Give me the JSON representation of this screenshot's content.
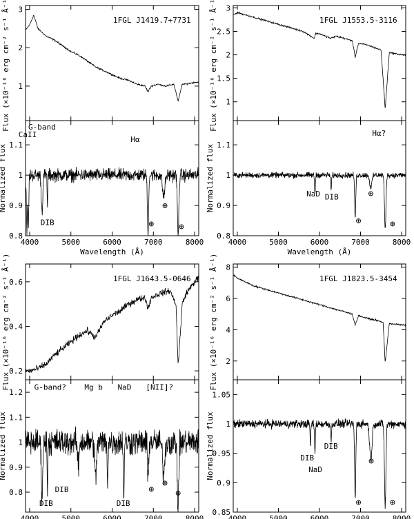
{
  "figure": {
    "flux_ylabel": "Flux (×10⁻¹⁶ erg cm⁻² s⁻¹ Å⁻¹)",
    "norm_ylabel": "Normalized flux",
    "xlabel": "Wavelength (Å)",
    "earth_symbol": "⊕"
  },
  "chart_data": [
    {
      "type": "line",
      "name": "1FGL J1419.7+7731",
      "x_range": [
        3900,
        8100
      ],
      "x_ticks": [
        "4000",
        "5000",
        "6000",
        "7000",
        "8000"
      ],
      "flux": {
        "ylim": [
          0.1,
          3.1
        ],
        "y_ticks": [
          "1",
          "2",
          "3"
        ],
        "y_tick_values": [
          1,
          2,
          3
        ],
        "x": [
          3900,
          4000,
          4100,
          4200,
          4400,
          4600,
          4800,
          5000,
          5200,
          5400,
          5600,
          5800,
          6000,
          6200,
          6400,
          6600,
          6800,
          6870,
          6950,
          7100,
          7300,
          7500,
          7600,
          7700,
          7800,
          8000,
          8100
        ],
        "y": [
          2.45,
          2.6,
          2.85,
          2.5,
          2.3,
          2.2,
          2.05,
          1.9,
          1.8,
          1.65,
          1.5,
          1.4,
          1.3,
          1.2,
          1.15,
          1.05,
          1.0,
          0.85,
          1.0,
          1.05,
          1.0,
          1.05,
          0.6,
          1.05,
          1.05,
          1.1,
          1.1
        ]
      },
      "norm": {
        "ylim": [
          0.8,
          1.18
        ],
        "y_ticks": [
          "0.8",
          "0.9",
          "1",
          "1.1"
        ],
        "y_tick_values": [
          0.8,
          0.9,
          1.0,
          1.1
        ],
        "noise": 0.018,
        "dips": [
          [
            3933,
            0.8,
            15
          ],
          [
            3968,
            0.82,
            15
          ],
          [
            4300,
            0.88,
            25
          ],
          [
            4430,
            0.9,
            10
          ],
          [
            6870,
            0.8,
            20
          ],
          [
            7250,
            0.93,
            40
          ],
          [
            7600,
            0.8,
            25
          ]
        ],
        "annotations": [
          {
            "text": "G-band",
            "x": 4300,
            "y": 1.15
          },
          {
            "text": "CaII",
            "x": 3950,
            "y": 1.125
          },
          {
            "text": "Hα",
            "x": 6560,
            "y": 1.11
          },
          {
            "text": "DIB",
            "x": 4430,
            "y": 0.835
          },
          {
            "text": "⊕",
            "x": 6950,
            "y": 0.83
          },
          {
            "text": "⊕",
            "x": 7280,
            "y": 0.89
          },
          {
            "text": "⊕",
            "x": 7680,
            "y": 0.82
          }
        ]
      }
    },
    {
      "type": "line",
      "name": "1FGL J1553.5-3116",
      "x_range": [
        3900,
        8100
      ],
      "x_ticks": [
        "4000",
        "5000",
        "6000",
        "7000",
        "8000"
      ],
      "flux": {
        "ylim": [
          0.6,
          3.05
        ],
        "y_ticks": [
          "1",
          "1.5",
          "2",
          "2.5",
          "3"
        ],
        "y_tick_values": [
          1,
          1.5,
          2,
          2.5,
          3
        ],
        "x": [
          3900,
          4000,
          4400,
          4800,
          5200,
          5600,
          5880,
          5900,
          6000,
          6280,
          6400,
          6800,
          6870,
          6950,
          7200,
          7500,
          7600,
          7700,
          8000,
          8100
        ],
        "y": [
          2.85,
          2.9,
          2.8,
          2.7,
          2.6,
          2.5,
          2.35,
          2.45,
          2.45,
          2.35,
          2.4,
          2.3,
          1.95,
          2.25,
          2.2,
          2.1,
          0.85,
          2.05,
          2.0,
          2.0
        ]
      },
      "norm": {
        "ylim": [
          0.8,
          1.18
        ],
        "y_ticks": [
          "0.8",
          "0.9",
          "1",
          "1.1"
        ],
        "y_tick_values": [
          0.8,
          0.9,
          1.0,
          1.1
        ],
        "noise": 0.008,
        "dips": [
          [
            5890,
            0.94,
            15
          ],
          [
            6283,
            0.95,
            15
          ],
          [
            6870,
            0.86,
            20
          ],
          [
            7250,
            0.96,
            40
          ],
          [
            7600,
            0.82,
            25
          ]
        ],
        "annotations": [
          {
            "text": "Hα?",
            "x": 7450,
            "y": 1.13
          },
          {
            "text": "NaD",
            "x": 5850,
            "y": 0.93
          },
          {
            "text": "DIB",
            "x": 6300,
            "y": 0.92
          },
          {
            "text": "⊕",
            "x": 6950,
            "y": 0.84
          },
          {
            "text": "⊕",
            "x": 7250,
            "y": 0.93
          },
          {
            "text": "⊕",
            "x": 7780,
            "y": 0.83
          }
        ]
      }
    },
    {
      "type": "line",
      "name": "1FGL J1643.5-0646",
      "x_range": [
        3900,
        8100
      ],
      "x_ticks": [
        "4000",
        "5000",
        "6000",
        "7000",
        "8000"
      ],
      "flux": {
        "ylim": [
          0.16,
          0.68
        ],
        "y_ticks": [
          "0.2",
          "0.4",
          "0.6"
        ],
        "y_tick_values": [
          0.2,
          0.4,
          0.6
        ],
        "x": [
          3900,
          4000,
          4200,
          4400,
          4600,
          4800,
          5000,
          5200,
          5400,
          5600,
          5800,
          6000,
          6200,
          6400,
          6600,
          6800,
          6870,
          6950,
          7200,
          7400,
          7550,
          7600,
          7700,
          7800,
          8000,
          8100
        ],
        "y": [
          0.2,
          0.2,
          0.21,
          0.23,
          0.27,
          0.3,
          0.33,
          0.36,
          0.38,
          0.35,
          0.42,
          0.45,
          0.47,
          0.5,
          0.52,
          0.53,
          0.48,
          0.53,
          0.55,
          0.56,
          0.5,
          0.22,
          0.5,
          0.55,
          0.6,
          0.62
        ]
      },
      "norm": {
        "ylim": [
          0.72,
          1.25
        ],
        "y_ticks": [
          "0.8",
          "0.9",
          "1",
          "1.1",
          "1.2"
        ],
        "y_tick_values": [
          0.8,
          0.9,
          1.0,
          1.1,
          1.2
        ],
        "noise": 0.045,
        "dips": [
          [
            4300,
            0.8,
            25
          ],
          [
            4430,
            0.82,
            10
          ],
          [
            5180,
            0.9,
            25
          ],
          [
            5600,
            0.85,
            30
          ],
          [
            5890,
            0.85,
            15
          ],
          [
            6283,
            0.8,
            15
          ],
          [
            6870,
            0.85,
            20
          ],
          [
            7250,
            0.88,
            40
          ],
          [
            7600,
            0.72,
            25
          ]
        ],
        "annotations": [
          {
            "text": "G-band?",
            "x": 4500,
            "y": 1.21
          },
          {
            "text": "Mg b",
            "x": 5550,
            "y": 1.21
          },
          {
            "text": "NaD",
            "x": 6300,
            "y": 1.21
          },
          {
            "text": "[NII]?",
            "x": 7150,
            "y": 1.21
          },
          {
            "text": "DIB",
            "x": 4780,
            "y": 0.8
          },
          {
            "text": "DIB",
            "x": 4400,
            "y": 0.745
          },
          {
            "text": "DIB",
            "x": 6270,
            "y": 0.745
          },
          {
            "text": "⊕",
            "x": 6950,
            "y": 0.8
          },
          {
            "text": "⊕",
            "x": 7280,
            "y": 0.825
          },
          {
            "text": "⊕",
            "x": 7600,
            "y": 0.785
          }
        ]
      }
    },
    {
      "type": "line",
      "name": "1FGL J1823.5-3454",
      "x_range": [
        3900,
        8100
      ],
      "x_ticks": [
        "4000",
        "5000",
        "6000",
        "7000",
        "8000"
      ],
      "flux": {
        "ylim": [
          0.8,
          8.2
        ],
        "y_ticks": [
          "2",
          "4",
          "6",
          "8"
        ],
        "y_tick_values": [
          2,
          4,
          6,
          8
        ],
        "x": [
          3900,
          4000,
          4400,
          4800,
          5200,
          5600,
          6000,
          6400,
          6800,
          6870,
          6950,
          7200,
          7400,
          7550,
          7600,
          7700,
          8000,
          8100
        ],
        "y": [
          7.5,
          7.3,
          6.8,
          6.5,
          6.2,
          5.9,
          5.6,
          5.3,
          5.0,
          4.3,
          4.9,
          4.7,
          4.6,
          4.45,
          1.9,
          4.4,
          4.3,
          4.3
        ]
      },
      "norm": {
        "ylim": [
          0.85,
          1.075
        ],
        "y_ticks": [
          "0.85",
          "0.9",
          "0.95",
          "1",
          "1.05"
        ],
        "y_tick_values": [
          0.85,
          0.9,
          0.95,
          1.0,
          1.05
        ],
        "noise": 0.006,
        "dips": [
          [
            5780,
            0.96,
            12
          ],
          [
            5890,
            0.95,
            15
          ],
          [
            6283,
            0.97,
            15
          ],
          [
            6870,
            0.87,
            20
          ],
          [
            7250,
            0.94,
            40
          ],
          [
            7600,
            0.86,
            25
          ]
        ],
        "annotations": [
          {
            "text": "DIB",
            "x": 5700,
            "y": 0.938
          },
          {
            "text": "DIB",
            "x": 6280,
            "y": 0.958
          },
          {
            "text": "NaD",
            "x": 5900,
            "y": 0.918
          },
          {
            "text": "⊕",
            "x": 6950,
            "y": 0.862
          },
          {
            "text": "⊕",
            "x": 7260,
            "y": 0.932
          },
          {
            "text": "⊕",
            "x": 7780,
            "y": 0.862
          }
        ]
      }
    }
  ]
}
